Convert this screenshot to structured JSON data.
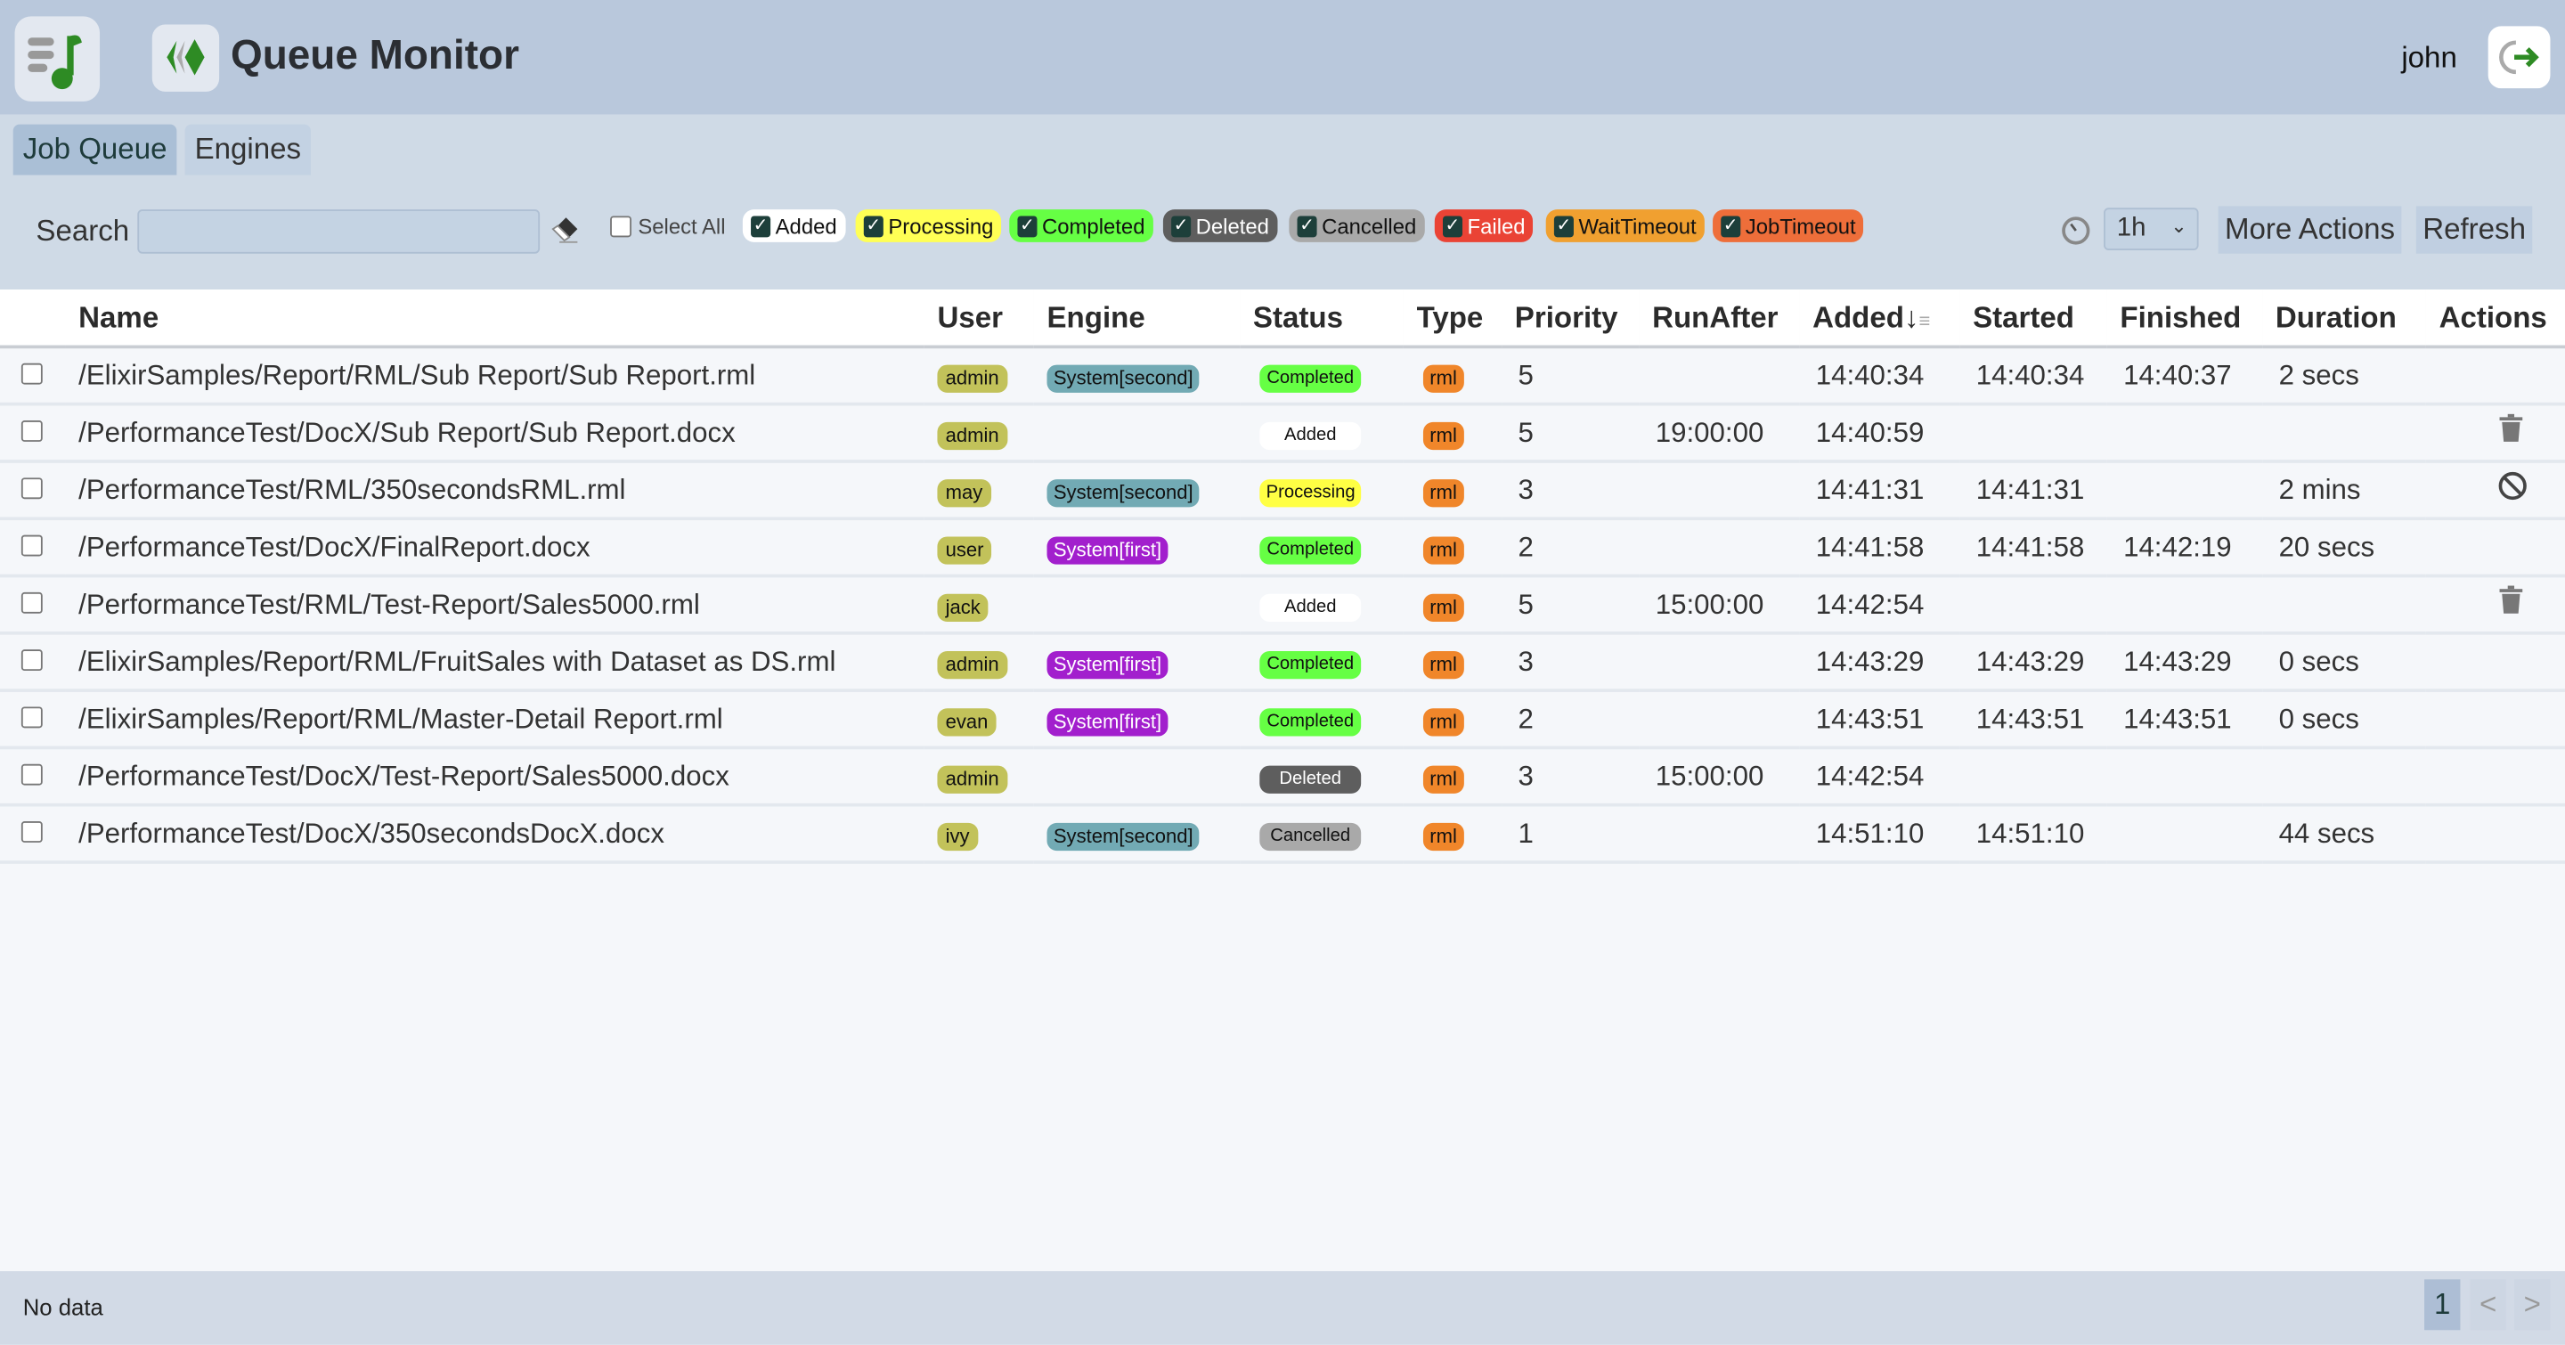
{
  "header": {
    "title": "Queue Monitor",
    "username": "john",
    "menu_icon": "music-list-icon",
    "logo_icon": "queue-logo-icon",
    "logout_icon": "logout-icon"
  },
  "tabs": [
    {
      "label": "Job Queue",
      "active": true
    },
    {
      "label": "Engines",
      "active": false
    }
  ],
  "toolbar": {
    "search_label": "Search",
    "search_value": "",
    "select_all": "Select All",
    "filters": [
      {
        "label": "Added",
        "color": "#ffffff",
        "text": "#111111",
        "checked": true
      },
      {
        "label": "Processing",
        "color": "#ffff55",
        "text": "#111111",
        "checked": true
      },
      {
        "label": "Completed",
        "color": "#66ff44",
        "text": "#111111",
        "checked": true
      },
      {
        "label": "Deleted",
        "color": "#5e5e5e",
        "text": "#ffffff",
        "checked": true
      },
      {
        "label": "Cancelled",
        "color": "#a9a9a9",
        "text": "#111111",
        "checked": true
      },
      {
        "label": "Failed",
        "color": "#ea4335",
        "text": "#ffffff",
        "checked": true
      },
      {
        "label": "WaitTimeout",
        "color": "#f0a030",
        "text": "#111111",
        "checked": true
      },
      {
        "label": "JobTimeout",
        "color": "#ee6e3a",
        "text": "#111111",
        "checked": true
      }
    ],
    "range": "1h",
    "more_actions": "More Actions",
    "refresh": "Refresh"
  },
  "table": {
    "columns": [
      "Name",
      "User",
      "Engine",
      "Status",
      "Type",
      "Priority",
      "RunAfter",
      "Added↓",
      "Started",
      "Finished",
      "Duration",
      "Actions"
    ],
    "sorted_column": "Added",
    "sort_direction": "descending",
    "rows": [
      {
        "name": "/ElixirSamples/Report/RML/Sub Report/Sub Report.rml",
        "user": "admin",
        "engine": "System[second]",
        "status": "Completed",
        "type": "rml",
        "priority": "5",
        "runafter": "",
        "added": "14:40:34",
        "started": "14:40:34",
        "finished": "14:40:37",
        "duration": "2 secs",
        "action": ""
      },
      {
        "name": "/PerformanceTest/DocX/Sub Report/Sub Report.docx",
        "user": "admin",
        "engine": "",
        "status": "Added",
        "type": "rml",
        "priority": "5",
        "runafter": "19:00:00",
        "added": "14:40:59",
        "started": "",
        "finished": "",
        "duration": "",
        "action": "trash"
      },
      {
        "name": "/PerformanceTest/RML/350secondsRML.rml",
        "user": "may",
        "engine": "System[second]",
        "status": "Processing",
        "type": "rml",
        "priority": "3",
        "runafter": "",
        "added": "14:41:31",
        "started": "14:41:31",
        "finished": "",
        "duration": "2 mins",
        "action": "cancel"
      },
      {
        "name": "/PerformanceTest/DocX/FinalReport.docx",
        "user": "user",
        "engine": "System[first]",
        "status": "Completed",
        "type": "rml",
        "priority": "2",
        "runafter": "",
        "added": "14:41:58",
        "started": "14:41:58",
        "finished": "14:42:19",
        "duration": "20 secs",
        "action": ""
      },
      {
        "name": "/PerformanceTest/RML/Test-Report/Sales5000.rml",
        "user": "jack",
        "engine": "",
        "status": "Added",
        "type": "rml",
        "priority": "5",
        "runafter": "15:00:00",
        "added": "14:42:54",
        "started": "",
        "finished": "",
        "duration": "",
        "action": "trash"
      },
      {
        "name": "/ElixirSamples/Report/RML/FruitSales with Dataset as DS.rml",
        "user": "admin",
        "engine": "System[first]",
        "status": "Completed",
        "type": "rml",
        "priority": "3",
        "runafter": "",
        "added": "14:43:29",
        "started": "14:43:29",
        "finished": "14:43:29",
        "duration": "0 secs",
        "action": ""
      },
      {
        "name": "/ElixirSamples/Report/RML/Master-Detail Report.rml",
        "user": "evan",
        "engine": "System[first]",
        "status": "Completed",
        "type": "rml",
        "priority": "2",
        "runafter": "",
        "added": "14:43:51",
        "started": "14:43:51",
        "finished": "14:43:51",
        "duration": "0 secs",
        "action": ""
      },
      {
        "name": "/PerformanceTest/DocX/Test-Report/Sales5000.docx",
        "user": "admin",
        "engine": "",
        "status": "Deleted",
        "type": "rml",
        "priority": "3",
        "runafter": "15:00:00",
        "added": "14:42:54",
        "started": "",
        "finished": "",
        "duration": "",
        "action": ""
      },
      {
        "name": "/PerformanceTest/DocX/350secondsDocX.docx",
        "user": "ivy",
        "engine": "System[second]",
        "status": "Cancelled",
        "type": "rml",
        "priority": "1",
        "runafter": "",
        "added": "14:51:10",
        "started": "14:51:10",
        "finished": "",
        "duration": "44 secs",
        "action": ""
      }
    ]
  },
  "footer": {
    "status": "No data",
    "page": "1",
    "prev": "<",
    "next": ">"
  }
}
